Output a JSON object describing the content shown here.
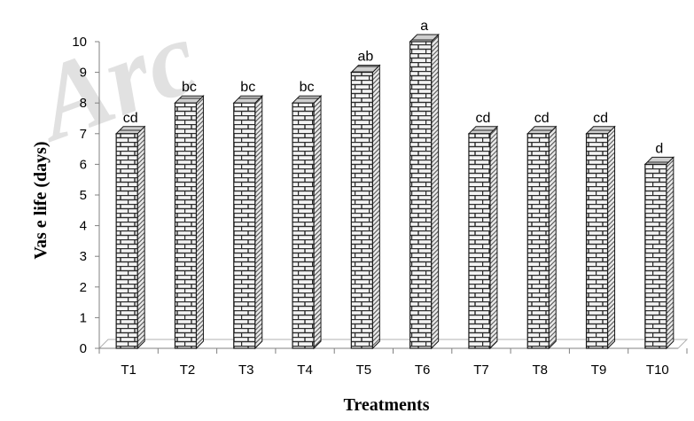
{
  "watermark": {
    "text": "Arc"
  },
  "chart_data": {
    "type": "bar",
    "style": "3d-columns-with-brick-pattern",
    "categories": [
      "T1",
      "T2",
      "T3",
      "T4",
      "T5",
      "T6",
      "T7",
      "T8",
      "T9",
      "T10"
    ],
    "values": [
      7,
      8,
      8,
      8,
      9,
      10,
      7,
      7,
      7,
      6
    ],
    "data_labels": [
      "cd",
      "bc",
      "bc",
      "bc",
      "ab",
      "a",
      "cd",
      "cd",
      "cd",
      "d"
    ],
    "xlabel": "Treatments",
    "ylabel": "Vas e life (days)",
    "ylim": [
      0,
      10
    ],
    "yticks": [
      "0",
      "1",
      "2",
      "3",
      "4",
      "5",
      "6",
      "7",
      "8",
      "9",
      "10"
    ],
    "grid": false,
    "legend": "none",
    "colors": {
      "bar_fill": "#f4f4f4",
      "brick_line": "#2a2a2a",
      "axis": "#808080",
      "floor": "#b0b0b0"
    }
  }
}
